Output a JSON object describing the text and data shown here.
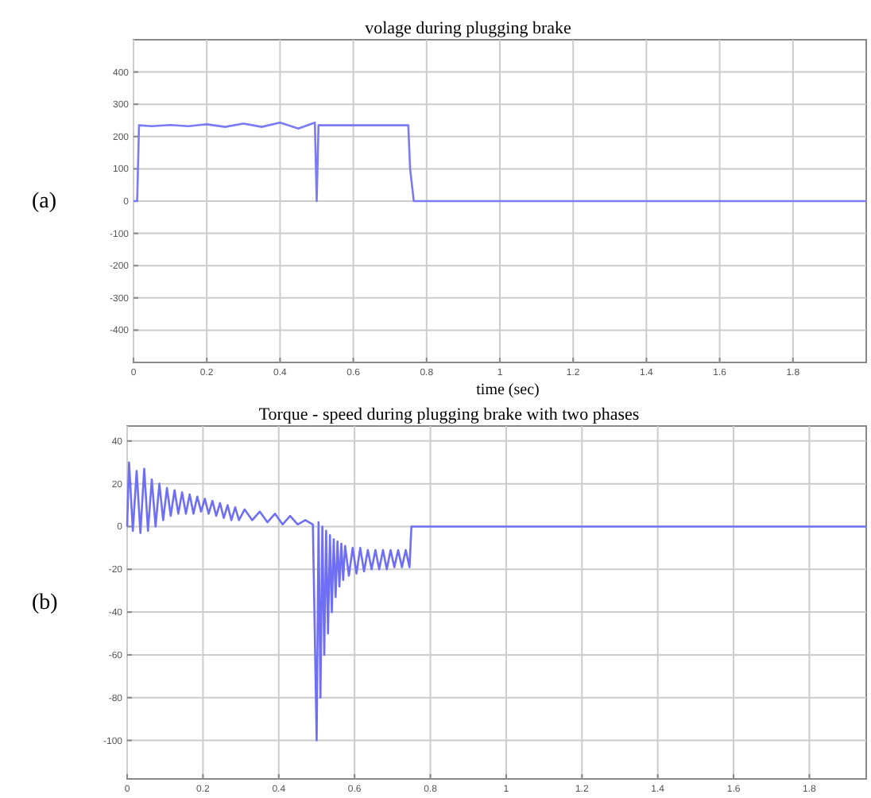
{
  "chart_data": [
    {
      "type": "line",
      "title": "volage    during plugging brake",
      "xlabel": "time (sec)",
      "annotations": [
        "(a)"
      ],
      "xlim": [
        0,
        2
      ],
      "ylim": [
        -500,
        500
      ],
      "xticks": [
        0,
        0.2,
        0.4,
        0.6,
        0.8,
        1,
        1.2,
        1.4,
        1.6,
        1.8
      ],
      "yticks": [
        -400,
        -300,
        -200,
        -100,
        0,
        100,
        200,
        300,
        400
      ],
      "grid": true,
      "series": [
        {
          "color": "#7b7bf5",
          "x": [
            0,
            0.01,
            0.015,
            0.05,
            0.1,
            0.15,
            0.2,
            0.25,
            0.3,
            0.35,
            0.4,
            0.45,
            0.495,
            0.5,
            0.505,
            0.75,
            0.755,
            0.765,
            2
          ],
          "values": [
            0,
            0,
            235,
            232,
            236,
            232,
            238,
            230,
            240,
            230,
            243,
            225,
            243,
            0,
            235,
            235,
            100,
            0,
            0
          ]
        }
      ]
    },
    {
      "type": "line",
      "title": "Torque -    speed during plugging brake with two phases",
      "annotations": [
        "(b)"
      ],
      "xlim": [
        0,
        1.95
      ],
      "ylim": [
        -118,
        47
      ],
      "xticks": [
        0,
        0.2,
        0.4,
        0.6,
        0.8,
        1,
        1.2,
        1.4,
        1.6,
        1.8
      ],
      "yticks": [
        -100,
        -80,
        -60,
        -40,
        -20,
        0,
        20,
        40
      ],
      "grid": true,
      "series": [
        {
          "color": "#6f6ff5",
          "x": [
            0,
            0.005,
            0.015,
            0.025,
            0.035,
            0.045,
            0.055,
            0.065,
            0.075,
            0.085,
            0.095,
            0.105,
            0.115,
            0.125,
            0.135,
            0.145,
            0.155,
            0.165,
            0.175,
            0.185,
            0.195,
            0.205,
            0.215,
            0.225,
            0.235,
            0.245,
            0.255,
            0.265,
            0.275,
            0.285,
            0.295,
            0.31,
            0.33,
            0.35,
            0.37,
            0.39,
            0.41,
            0.43,
            0.45,
            0.47,
            0.49,
            0.5,
            0.505,
            0.51,
            0.515,
            0.52,
            0.525,
            0.53,
            0.535,
            0.54,
            0.545,
            0.55,
            0.555,
            0.56,
            0.565,
            0.57,
            0.575,
            0.585,
            0.595,
            0.605,
            0.615,
            0.625,
            0.635,
            0.645,
            0.655,
            0.665,
            0.675,
            0.685,
            0.695,
            0.705,
            0.715,
            0.725,
            0.735,
            0.745,
            0.75,
            1.95
          ],
          "values": [
            0,
            30,
            -2,
            26,
            -3,
            27,
            -2,
            22,
            0,
            20,
            3,
            18,
            5,
            17,
            6,
            16,
            6,
            15,
            6,
            14,
            7,
            13,
            6,
            12,
            5,
            11,
            4,
            10,
            3,
            9,
            3,
            8,
            3,
            7,
            2,
            6,
            1,
            5,
            1,
            3,
            1,
            -100,
            2,
            -80,
            0,
            -60,
            -2,
            -50,
            -4,
            -40,
            -6,
            -33,
            -7,
            -28,
            -8,
            -25,
            -9,
            -23,
            -10,
            -22,
            -10,
            -21,
            -11,
            -20,
            -11,
            -20,
            -11,
            -20,
            -11,
            -19,
            -11,
            -19,
            -11,
            -19,
            0,
            0
          ]
        }
      ]
    }
  ]
}
